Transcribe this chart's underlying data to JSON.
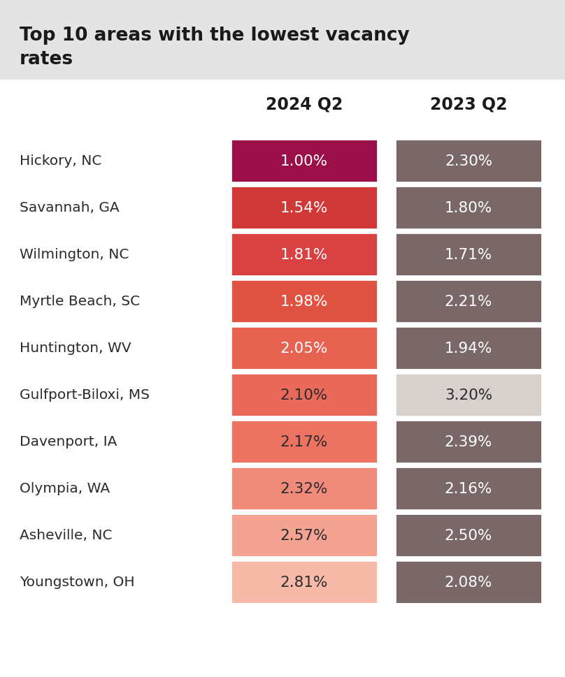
{
  "title_line1": "Top 10 areas with the lowest vacancy",
  "title_line2": "rates",
  "header_2024": "2024 Q2",
  "header_2023": "2023 Q2",
  "areas": [
    "Hickory, NC",
    "Savannah, GA",
    "Wilmington, NC",
    "Myrtle Beach, SC",
    "Huntington, WV",
    "Gulfport-Biloxi, MS",
    "Davenport, IA",
    "Olympia, WA",
    "Asheville, NC",
    "Youngstown, OH"
  ],
  "labels_2024": [
    "1.00%",
    "1.54%",
    "1.81%",
    "1.98%",
    "2.05%",
    "2.10%",
    "2.17%",
    "2.32%",
    "2.57%",
    "2.81%"
  ],
  "labels_2023": [
    "2.30%",
    "1.80%",
    "1.71%",
    "2.21%",
    "1.94%",
    "3.20%",
    "2.39%",
    "2.16%",
    "2.50%",
    "2.08%"
  ],
  "colors_2024": [
    "#9B1048",
    "#D03838",
    "#D94242",
    "#E05242",
    "#E86252",
    "#E96A5A",
    "#EC7262",
    "#F08A7A",
    "#F4A292",
    "#F8BAA8"
  ],
  "colors_2023": [
    "#7A6868",
    "#7A6868",
    "#7A6868",
    "#7A6868",
    "#7A6868",
    "#D8D0CC",
    "#7A6868",
    "#7A6868",
    "#7A6868",
    "#7A6868"
  ],
  "text_colors_2024": [
    "#FFFFFF",
    "#FFFFFF",
    "#FFFFFF",
    "#FFFFFF",
    "#FFFFFF",
    "#2B2B2B",
    "#2B2B2B",
    "#2B2B2B",
    "#2B2B2B",
    "#2B2B2B"
  ],
  "text_colors_2023": [
    "#FFFFFF",
    "#FFFFFF",
    "#FFFFFF",
    "#FFFFFF",
    "#FFFFFF",
    "#2B2B2B",
    "#FFFFFF",
    "#FFFFFF",
    "#FFFFFF",
    "#FFFFFF"
  ],
  "title_bg_color": "#E4E4E4",
  "bg_color": "#FFFFFF"
}
